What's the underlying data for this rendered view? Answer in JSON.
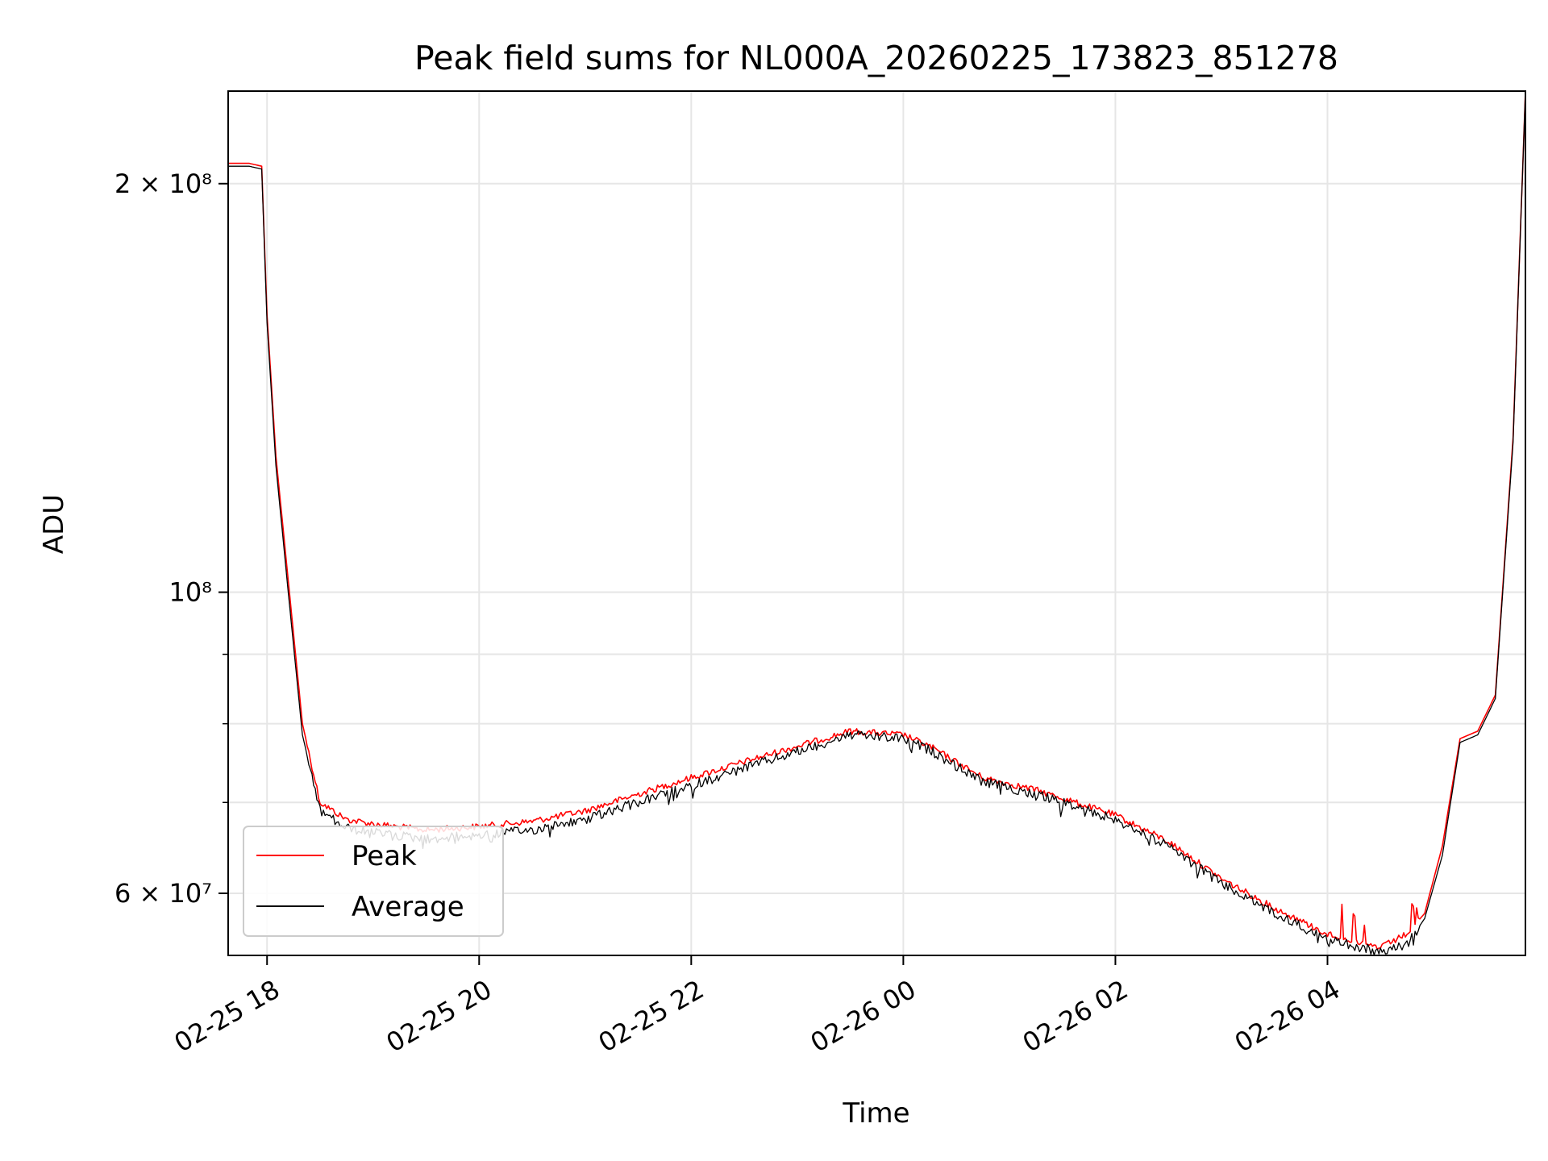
{
  "chart_data": {
    "type": "line",
    "title": "Peak field sums for NL000A_20260225_173823_851278",
    "xlabel": "Time",
    "ylabel": "ADU",
    "x_axis": {
      "type": "date",
      "range": [
        "02-25 17:38",
        "02-26 05:52"
      ],
      "ticks": [
        "02-25 18",
        "02-25 20",
        "02-25 22",
        "02-26 00",
        "02-26 02",
        "02-26 04"
      ]
    },
    "y_axis": {
      "scale": "log",
      "range": [
        54000000,
        234000000
      ],
      "ticks": [
        {
          "value": 60000000,
          "label": "6 × 10⁷"
        },
        {
          "value": 100000000,
          "label": "10⁸"
        },
        {
          "value": 200000000,
          "label": "2 × 10⁸"
        }
      ],
      "minor_ticks": [
        70000000,
        80000000,
        90000000
      ]
    },
    "grid": true,
    "legend": "lower-left",
    "colors": {
      "Peak": "#ff0000",
      "Average": "#000000"
    },
    "series": [
      {
        "name": "Peak",
        "x": [
          "02-25 17:38",
          "02-25 17:50",
          "02-25 17:57",
          "02-25 18:00",
          "02-25 18:05",
          "02-25 18:12",
          "02-25 18:20",
          "02-25 18:30",
          "02-25 18:45",
          "02-25 19:00",
          "02-25 19:30",
          "02-25 20:00",
          "02-25 20:30",
          "02-25 21:00",
          "02-25 21:30",
          "02-25 22:00",
          "02-25 22:30",
          "02-25 23:00",
          "02-25 23:30",
          "02-26 00:00",
          "02-26 00:15",
          "02-26 00:45",
          "02-26 01:15",
          "02-26 01:30",
          "02-26 02:00",
          "02-26 02:30",
          "02-26 03:00",
          "02-26 03:30",
          "02-26 04:00",
          "02-26 04:30",
          "02-26 04:45",
          "02-26 04:55",
          "02-26 05:05",
          "02-26 05:15",
          "02-26 05:25",
          "02-26 05:35",
          "02-26 05:45",
          "02-26 05:52"
        ],
        "y": [
          207000000,
          207000000,
          206000000,
          160000000,
          126000000,
          102000000,
          80000000,
          70000000,
          68000000,
          67500000,
          66800000,
          67200000,
          67800000,
          69000000,
          71000000,
          73000000,
          75000000,
          77000000,
          79000000,
          78500000,
          77000000,
          73000000,
          71500000,
          70500000,
          68500000,
          65500000,
          61500000,
          58500000,
          56000000,
          54700000,
          56000000,
          58000000,
          65000000,
          78000000,
          79000000,
          84000000,
          130000000,
          234000000
        ]
      },
      {
        "name": "Average",
        "x": [
          "02-25 17:38",
          "02-25 17:50",
          "02-25 17:57",
          "02-25 18:00",
          "02-25 18:05",
          "02-25 18:12",
          "02-25 18:20",
          "02-25 18:30",
          "02-25 18:45",
          "02-25 19:00",
          "02-25 19:30",
          "02-25 20:00",
          "02-25 20:30",
          "02-25 21:00",
          "02-25 21:30",
          "02-25 22:00",
          "02-25 22:30",
          "02-25 23:00",
          "02-25 23:30",
          "02-26 00:00",
          "02-26 00:15",
          "02-26 00:45",
          "02-26 01:15",
          "02-26 01:30",
          "02-26 02:00",
          "02-26 02:30",
          "02-26 03:00",
          "02-26 03:30",
          "02-26 04:00",
          "02-26 04:30",
          "02-26 04:45",
          "02-26 04:55",
          "02-26 05:05",
          "02-26 05:15",
          "02-26 05:25",
          "02-26 05:35",
          "02-26 05:45",
          "02-26 05:52"
        ],
        "y": [
          206000000,
          206000000,
          205000000,
          158000000,
          124000000,
          100000000,
          78500000,
          69000000,
          67000000,
          66500000,
          65800000,
          66200000,
          66800000,
          68000000,
          70000000,
          72000000,
          74200000,
          76300000,
          78500000,
          78000000,
          76500000,
          72500000,
          71000000,
          70000000,
          68000000,
          65000000,
          61000000,
          58000000,
          55500000,
          54300000,
          55000000,
          57500000,
          64000000,
          77500000,
          78500000,
          83500000,
          129000000,
          234000000
        ]
      }
    ]
  }
}
